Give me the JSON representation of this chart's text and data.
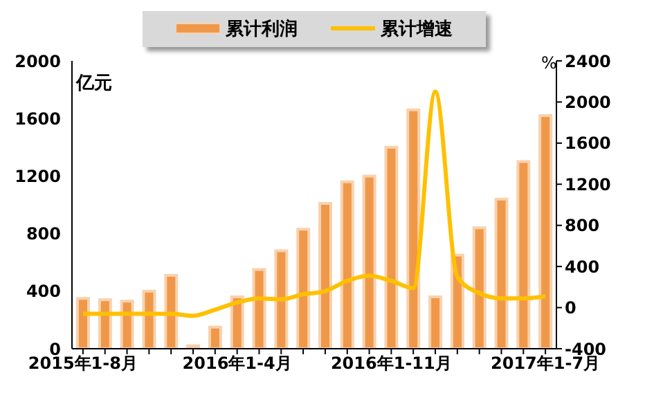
{
  "chart_data": {
    "type": "bar",
    "ylabel": "亿元",
    "y2label": "%",
    "categories": [
      "2015年1-8月",
      null,
      null,
      null,
      null,
      null,
      null,
      "2016年1-4月",
      null,
      null,
      null,
      null,
      null,
      null,
      "2016年1-11月",
      null,
      null,
      null,
      null,
      null,
      null,
      "2017年1-7月"
    ],
    "series": [
      {
        "name": "累计利润",
        "color": "#f0984a",
        "values": [
          350,
          340,
          330,
          400,
          510,
          20,
          150,
          360,
          550,
          680,
          830,
          1010,
          1160,
          1200,
          1400,
          1660,
          360,
          650,
          840,
          1040,
          1300,
          1620
        ]
      },
      {
        "name": "累计增速",
        "type": "line",
        "axis": "y2",
        "color": "#ffc000",
        "values": [
          -60,
          -60,
          -60,
          -60,
          -60,
          -80,
          -20,
          50,
          90,
          80,
          130,
          160,
          260,
          310,
          260,
          190,
          2100,
          300,
          140,
          90,
          90,
          110
        ]
      }
    ],
    "ylim": [
      0,
      2000
    ],
    "yticks": [
      0,
      400,
      800,
      1200,
      1600,
      2000
    ],
    "y2lim": [
      -400,
      2400
    ],
    "y2ticks": [
      -400,
      0,
      400,
      800,
      1200,
      1600,
      2000,
      2400
    ],
    "grid": false,
    "legend": "top",
    "marker": "none",
    "line_style": "solid"
  }
}
